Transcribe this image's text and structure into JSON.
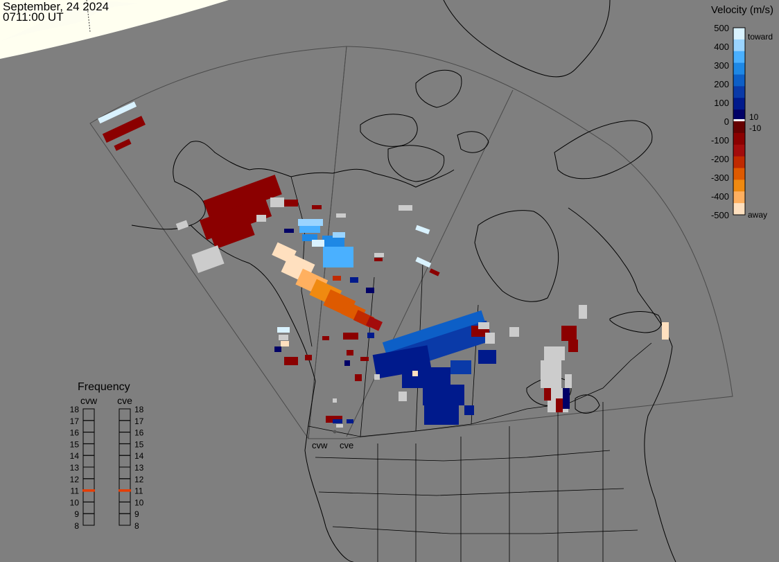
{
  "header": {
    "date": "September, 24 2024",
    "time": "0711:00 UT"
  },
  "colorbar": {
    "title": "Velocity (m/s)",
    "ticks": [
      "500",
      "400",
      "300",
      "200",
      "100",
      "0",
      "-100",
      "-200",
      "-300",
      "-400",
      "-500"
    ],
    "inner_labels": [
      "10",
      "-10"
    ],
    "toward_label": "toward",
    "away_label": "away",
    "colors": [
      "#d9f2ff",
      "#9ad4ff",
      "#4ab0ff",
      "#1e88e5",
      "#0d5fc7",
      "#0a3aa8",
      "#001a8c",
      "#000066",
      "#660000",
      "#8b0000",
      "#a30c0c",
      "#c02a00",
      "#de5a00",
      "#f08a10",
      "#ffb060",
      "#ffe0bf"
    ]
  },
  "frequency": {
    "title": "Frequency",
    "radars": [
      "cvw",
      "cve"
    ],
    "ticks": [
      "18",
      "17",
      "16",
      "15",
      "14",
      "13",
      "12",
      "11",
      "10",
      "9",
      "8"
    ],
    "cvw_mhz": 11,
    "cve_mhz": 11,
    "marker_color": "#e83c00"
  },
  "map": {
    "radar_site_labels": [
      "cvw",
      "cve"
    ],
    "land_outline_color": "#000000",
    "background_color": "#7f7f7f",
    "daylight_color": "#fffff0"
  }
}
